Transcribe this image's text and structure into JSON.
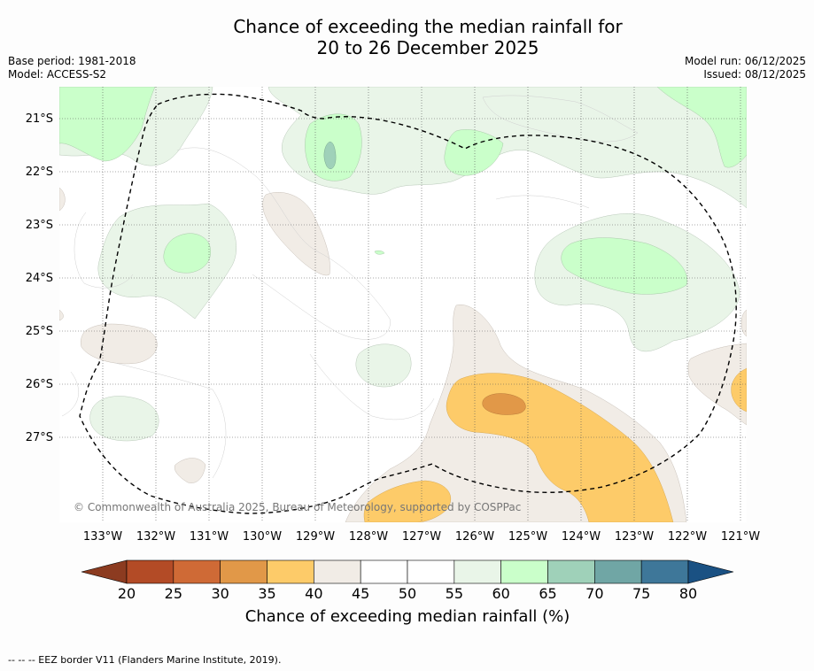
{
  "title": {
    "line1": "Chance of exceeding the median rainfall for",
    "line2": "20 to 26 December 2025"
  },
  "meta": {
    "base_period": "Base period: 1981-2018",
    "model": "Model: ACCESS-S2",
    "model_run": "Model run: 06/12/2025",
    "issued": "Issued: 08/12/2025"
  },
  "map": {
    "lat_labels": [
      "21°S",
      "22°S",
      "23°S",
      "24°S",
      "25°S",
      "26°S",
      "27°S"
    ],
    "lon_labels": [
      "133°W",
      "132°W",
      "131°W",
      "130°W",
      "129°W",
      "128°W",
      "127°W",
      "126°W",
      "125°W",
      "124°W",
      "123°W",
      "122°W",
      "121°W"
    ],
    "copyright": "© Commonwealth of Australia 2025, Bureau of Meteorology, supported by COSPPac",
    "background_color": "#ffffff",
    "eez_color": "#000000"
  },
  "colorbar": {
    "ticks": [
      "20",
      "25",
      "30",
      "35",
      "40",
      "45",
      "50",
      "55",
      "60",
      "65",
      "70",
      "75",
      "80"
    ],
    "label": "Chance of exceeding median rainfall (%)",
    "colors": [
      "#b34b26",
      "#cf6a36",
      "#e19848",
      "#fdcb69",
      "#f1ece6",
      "#ffffff",
      "#ffffff",
      "#e9f5e8",
      "#caffca",
      "#9fd1b9",
      "#70a6a5",
      "#3e7799"
    ],
    "under_color": "#8c3b20",
    "over_color": "#1a5183"
  },
  "footer": {
    "eez_legend": "--  --  -- EEZ border V11 (Flanders Marine Institute, 2019)."
  }
}
